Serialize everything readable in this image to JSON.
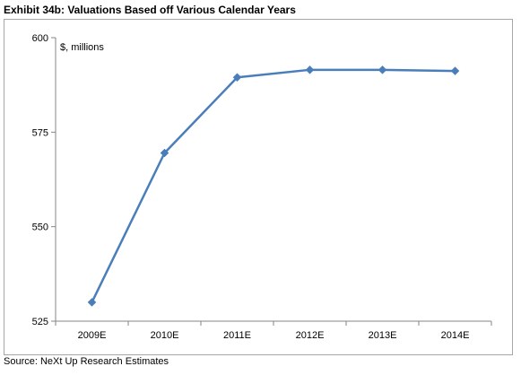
{
  "title": "Exhibit 34b: Valuations Based off Various Calendar Years",
  "source": "Source: NeXt Up Research Estimates",
  "colors": {
    "series": "#4a7ebb",
    "axis": "#868686",
    "frame": "#a6a6a6"
  },
  "chart_data": {
    "type": "line",
    "title": "",
    "xlabel": "",
    "ylabel": "",
    "unit_label": "$, millions",
    "categories": [
      "2009E",
      "2010E",
      "2011E",
      "2012E",
      "2013E",
      "2014E"
    ],
    "series": [
      {
        "values": [
          530,
          569.5,
          589.5,
          591.5,
          591.5,
          591.2
        ]
      }
    ],
    "ylim": [
      525,
      600
    ],
    "yticks": [
      525,
      550,
      575,
      600
    ],
    "grid": false,
    "legend": "none",
    "marker": "diamond"
  }
}
